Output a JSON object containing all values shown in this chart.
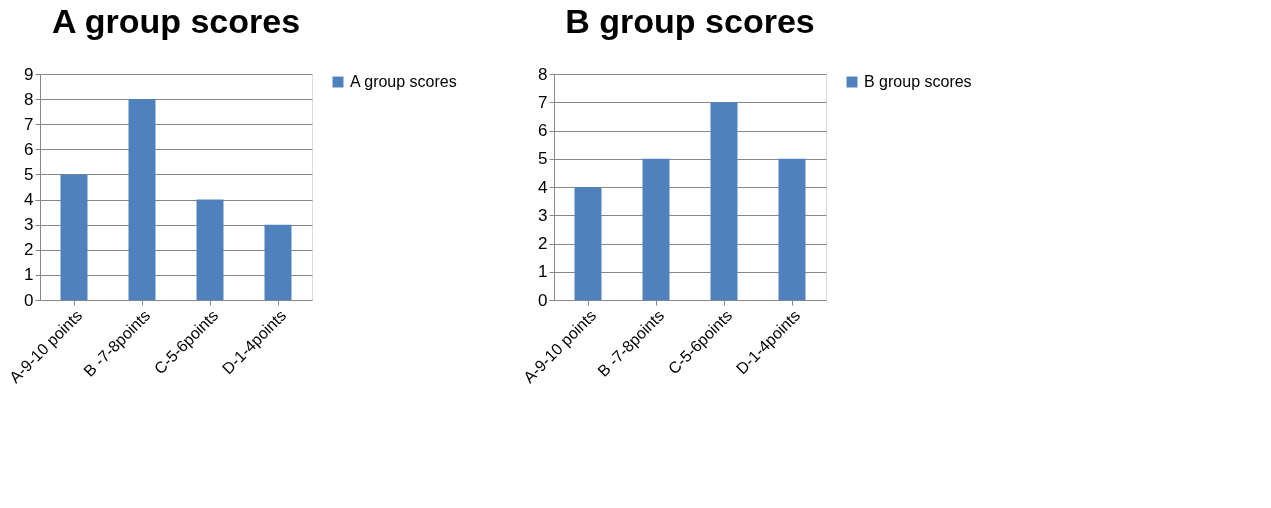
{
  "chart_data": [
    {
      "type": "bar",
      "title": "A group scores",
      "categories": [
        "A-9-10 points",
        "B -7-8points",
        "C-5-6points",
        "D-1-4points"
      ],
      "series": [
        {
          "name": "A group scores",
          "color": "#4f81bd",
          "values": [
            5,
            8,
            4,
            3
          ]
        }
      ],
      "ylim": [
        0,
        9
      ],
      "yticks": [
        0,
        1,
        2,
        3,
        4,
        5,
        6,
        7,
        8,
        9
      ],
      "grid": "y",
      "legend": "right"
    },
    {
      "type": "bar",
      "title": "B group scores",
      "categories": [
        "A-9-10 points",
        "B -7-8points",
        "C-5-6points",
        "D-1-4points"
      ],
      "series": [
        {
          "name": "B group scores",
          "color": "#4f81bd",
          "values": [
            4,
            5,
            7,
            5
          ]
        }
      ],
      "ylim": [
        0,
        8
      ],
      "yticks": [
        0,
        1,
        2,
        3,
        4,
        5,
        6,
        7,
        8
      ],
      "grid": "y",
      "legend": "right"
    }
  ]
}
